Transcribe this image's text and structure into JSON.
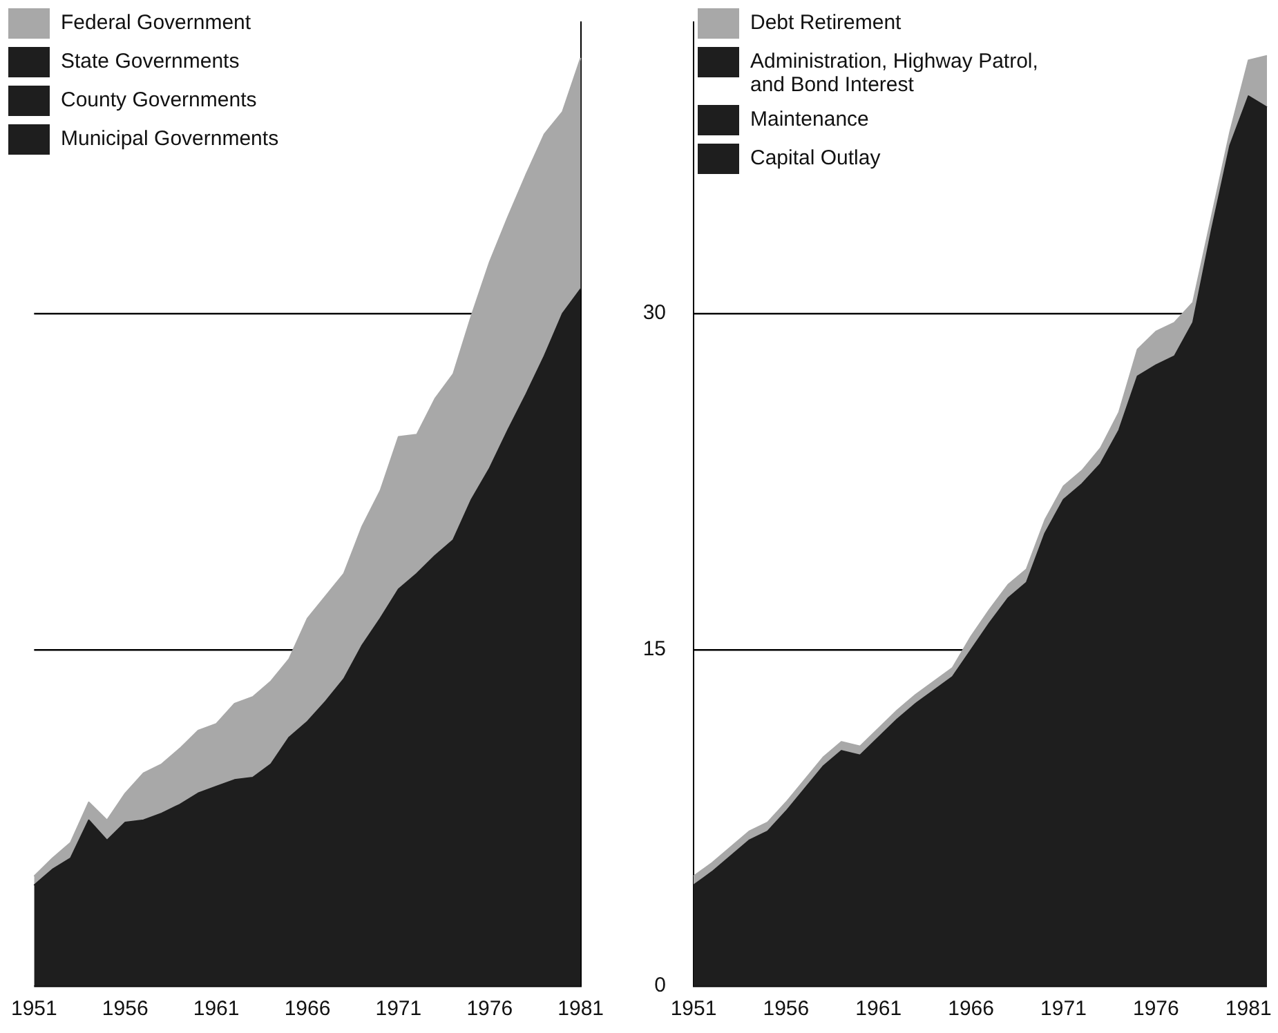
{
  "chart_data": [
    {
      "type": "area",
      "stacked": true,
      "categories": [
        "1951",
        null,
        null,
        null,
        null,
        "1956",
        null,
        null,
        null,
        null,
        "1961",
        null,
        null,
        null,
        null,
        "1966",
        null,
        null,
        null,
        null,
        "1971",
        null,
        null,
        null,
        null,
        "1976",
        null,
        null,
        null,
        null,
        "1981"
      ],
      "series": [
        {
          "color": "#1e1e1e",
          "values": [
            4.5,
            5.2,
            5.7,
            7.4,
            6.5,
            7.3,
            7.4,
            7.7,
            8.1,
            8.6,
            8.9,
            9.2,
            9.3,
            9.9,
            11.1,
            11.8,
            12.7,
            13.7,
            15.2,
            16.4,
            17.7,
            18.4,
            19.2,
            19.9,
            21.7,
            23.1,
            24.8,
            26.4,
            28.1,
            30.0,
            31.1
          ]
        },
        {
          "name": "Municipal Governments",
          "color": "#1e1e1e",
          "values": [
            null,
            null,
            null,
            null,
            null,
            null,
            null,
            null,
            null,
            null,
            null,
            null,
            null,
            null,
            null,
            null,
            null,
            null,
            null,
            null,
            null,
            null,
            null,
            null,
            null,
            null,
            null,
            null,
            null,
            null,
            null
          ]
        },
        {
          "name": "County Governments",
          "color": "#1e1e1e",
          "values": [
            null,
            null,
            null,
            null,
            null,
            null,
            null,
            null,
            null,
            null,
            null,
            null,
            null,
            null,
            null,
            null,
            null,
            null,
            null,
            null,
            null,
            null,
            null,
            null,
            null,
            null,
            null,
            null,
            null,
            null,
            null
          ]
        },
        {
          "name": "State Governments",
          "color": "#1e1e1e",
          "values": [
            null,
            null,
            null,
            null,
            null,
            null,
            null,
            null,
            null,
            null,
            null,
            null,
            null,
            null,
            null,
            null,
            null,
            null,
            null,
            null,
            null,
            null,
            null,
            null,
            null,
            null,
            null,
            null,
            null,
            null,
            null
          ]
        },
        {
          "name": "Federal Government",
          "color": "#a8a8a8",
          "values": [
            0.4,
            0.5,
            0.7,
            0.8,
            0.9,
            1.3,
            2.1,
            2.2,
            2.5,
            2.8,
            2.8,
            3.4,
            3.6,
            3.7,
            3.5,
            4.6,
            4.7,
            4.7,
            5.3,
            5.7,
            6.8,
            6.2,
            7.0,
            7.4,
            8.2,
            9.2,
            9.5,
            9.8,
            9.9,
            9.0,
            10.3
          ]
        }
      ],
      "ylim": [
        0,
        43
      ],
      "yticks": [
        0,
        15,
        30
      ],
      "grid": "y",
      "legend": "top left",
      "tick_labels": "x"
    },
    {
      "type": "area",
      "stacked": true,
      "categories": [
        "1951",
        null,
        null,
        null,
        null,
        "1956",
        null,
        null,
        null,
        null,
        "1961",
        null,
        null,
        null,
        null,
        "1966",
        null,
        null,
        null,
        null,
        "1971",
        null,
        null,
        null,
        null,
        "1976",
        null,
        null,
        null,
        null,
        "1981",
        null
      ],
      "series": [
        {
          "color": "#1e1e1e",
          "values": [
            4.5,
            5.1,
            5.8,
            6.5,
            6.9,
            7.8,
            8.8,
            9.8,
            10.5,
            10.3,
            11.1,
            11.9,
            12.6,
            13.2,
            13.8,
            15.0,
            16.2,
            17.3,
            18.0,
            20.2,
            21.7,
            22.4,
            23.3,
            24.8,
            27.2,
            27.7,
            28.1,
            29.6,
            33.7,
            37.5,
            39.7,
            39.2
          ]
        },
        {
          "name": "Capital Outlay",
          "color": "#1e1e1e",
          "values": [
            null,
            null,
            null,
            null,
            null,
            null,
            null,
            null,
            null,
            null,
            null,
            null,
            null,
            null,
            null,
            null,
            null,
            null,
            null,
            null,
            null,
            null,
            null,
            null,
            null,
            null,
            null,
            null,
            null,
            null,
            null,
            null
          ]
        },
        {
          "name": "Maintenance",
          "color": "#1e1e1e",
          "values": [
            null,
            null,
            null,
            null,
            null,
            null,
            null,
            null,
            null,
            null,
            null,
            null,
            null,
            null,
            null,
            null,
            null,
            null,
            null,
            null,
            null,
            null,
            null,
            null,
            null,
            null,
            null,
            null,
            null,
            null,
            null,
            null
          ]
        },
        {
          "name": "Administration, Highway Patrol, and Bond Interest",
          "color": "#1e1e1e",
          "values": [
            null,
            null,
            null,
            null,
            null,
            null,
            null,
            null,
            null,
            null,
            null,
            null,
            null,
            null,
            null,
            null,
            null,
            null,
            null,
            null,
            null,
            null,
            null,
            null,
            null,
            null,
            null,
            null,
            null,
            null,
            null,
            null
          ]
        },
        {
          "name": "Debt Retirement",
          "color": "#a8a8a8",
          "values": [
            0.4,
            0.4,
            0.4,
            0.4,
            0.4,
            0.4,
            0.4,
            0.4,
            0.4,
            0.4,
            0.4,
            0.4,
            0.4,
            0.4,
            0.4,
            0.6,
            0.6,
            0.6,
            0.6,
            0.6,
            0.6,
            0.6,
            0.7,
            0.8,
            1.2,
            1.5,
            1.5,
            0.9,
            0.6,
            0.6,
            1.6,
            2.3
          ]
        }
      ],
      "ylim": [
        0,
        43
      ],
      "yticks": [
        0,
        15,
        30
      ],
      "grid": "y",
      "legend": "top left"
    }
  ]
}
